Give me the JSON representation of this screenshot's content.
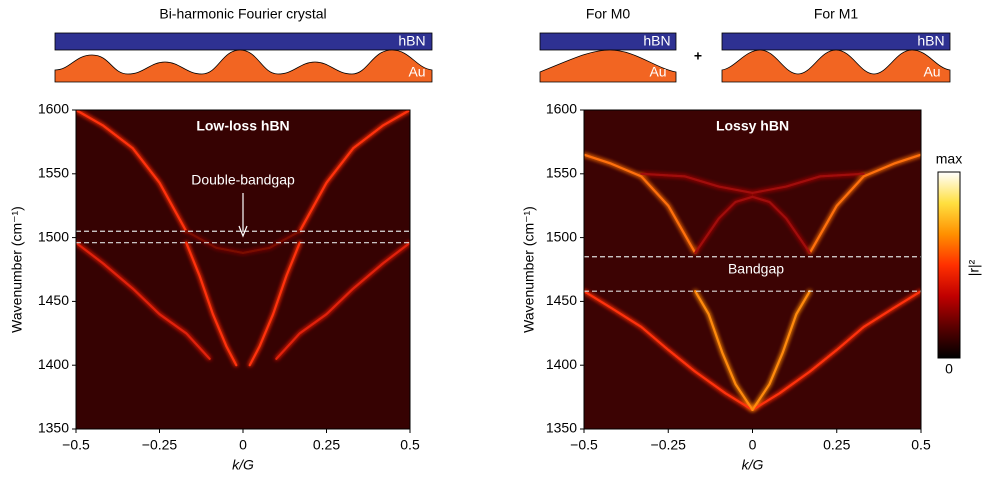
{
  "schematics": {
    "title": "Bi-harmonic Fourier crystal",
    "m0_title": "For M0",
    "plus": "+",
    "m1_title": "For M1",
    "bi_top": "hBN",
    "bi_bottom": "Au",
    "m0_top": "hBN",
    "m0_bottom": "Au",
    "m1_top": "hBN",
    "m1_bottom": "Au"
  },
  "colorbar": {
    "top": "max",
    "bottom": "0",
    "label": "|r|²",
    "colors": [
      "#000000",
      "#5a0000",
      "#c00000",
      "#ff3000",
      "#ff9000",
      "#ffe040",
      "#ffffff"
    ]
  },
  "chart_data": [
    {
      "type": "heatmap",
      "title": "Low-loss hBN",
      "xlabel": "k/G",
      "ylabel": "Wavenumber (cm⁻¹)",
      "background": "#360202",
      "xlim": [
        -0.5,
        0.5
      ],
      "xticks": [
        {
          "value": -0.5,
          "label": "−0.5"
        },
        {
          "value": -0.25,
          "label": "−0.25"
        },
        0,
        0.25,
        0.5
      ],
      "ylim": [
        1350,
        1600
      ],
      "yticks": [
        1350,
        1400,
        1450,
        1500,
        1550,
        1600
      ],
      "hlines": [
        1505,
        1496
      ],
      "annotation": "Double-bandgap",
      "series": [
        {
          "color": "#ff3010",
          "x": [
            -0.5,
            -0.42,
            -0.33,
            -0.25,
            -0.17
          ],
          "y": [
            1600,
            1588,
            1570,
            1543,
            1505
          ]
        },
        {
          "color": "#ff3010",
          "x": [
            0.5,
            0.42,
            0.33,
            0.25,
            0.17
          ],
          "y": [
            1600,
            1588,
            1570,
            1543,
            1505
          ]
        },
        {
          "color": "#7a0a05",
          "x": [
            -0.17,
            -0.08,
            0,
            0.08,
            0.17
          ],
          "y": [
            1505,
            1492,
            1488,
            1492,
            1505
          ]
        },
        {
          "color": "#ff3010",
          "x": [
            -0.17,
            -0.13,
            -0.09,
            -0.05,
            -0.02
          ],
          "y": [
            1496,
            1470,
            1440,
            1415,
            1400
          ]
        },
        {
          "color": "#ff3010",
          "x": [
            0.17,
            0.13,
            0.09,
            0.05,
            0.02
          ],
          "y": [
            1496,
            1470,
            1440,
            1415,
            1400
          ]
        },
        {
          "color": "#e02008",
          "x": [
            -0.5,
            -0.42,
            -0.33,
            -0.25,
            -0.17,
            -0.1
          ],
          "y": [
            1496,
            1480,
            1460,
            1440,
            1425,
            1405
          ]
        },
        {
          "color": "#e02008",
          "x": [
            0.5,
            0.42,
            0.33,
            0.25,
            0.17,
            0.1
          ],
          "y": [
            1496,
            1480,
            1460,
            1440,
            1425,
            1405
          ]
        }
      ]
    },
    {
      "type": "heatmap",
      "title": "Lossy hBN",
      "xlabel": "k/G",
      "ylabel": "Wavenumber (cm⁻¹)",
      "background": "#3c0303",
      "xlim": [
        -0.5,
        0.5
      ],
      "xticks": [
        {
          "value": -0.5,
          "label": "−0.5"
        },
        {
          "value": -0.25,
          "label": "−0.25"
        },
        0,
        0.25,
        0.5
      ],
      "ylim": [
        1350,
        1600
      ],
      "yticks": [
        1350,
        1400,
        1450,
        1500,
        1550,
        1600
      ],
      "hlines": [
        1485,
        1458
      ],
      "annotation": "Bandgap",
      "series": [
        {
          "color": "#ff7010",
          "x": [
            -0.5,
            -0.42,
            -0.33,
            -0.25,
            -0.17
          ],
          "y": [
            1565,
            1558,
            1548,
            1525,
            1488
          ]
        },
        {
          "color": "#ff7010",
          "x": [
            0.5,
            0.42,
            0.33,
            0.25,
            0.17
          ],
          "y": [
            1565,
            1558,
            1548,
            1525,
            1488
          ]
        },
        {
          "color": "#a01008",
          "x": [
            -0.33,
            -0.2,
            -0.1,
            0,
            0.1,
            0.2,
            0.33
          ],
          "y": [
            1550,
            1548,
            1540,
            1535,
            1540,
            1548,
            1550
          ]
        },
        {
          "color": "#a01008",
          "x": [
            -0.17,
            -0.1,
            -0.05,
            0,
            0.05,
            0.1,
            0.17
          ],
          "y": [
            1488,
            1515,
            1528,
            1532,
            1528,
            1515,
            1488
          ]
        },
        {
          "color": "#ff3010",
          "x": [
            -0.5,
            -0.42,
            -0.33,
            -0.25,
            -0.17,
            -0.08,
            0
          ],
          "y": [
            1458,
            1445,
            1430,
            1412,
            1395,
            1378,
            1365
          ]
        },
        {
          "color": "#ff3010",
          "x": [
            0.5,
            0.42,
            0.33,
            0.25,
            0.17,
            0.08,
            0
          ],
          "y": [
            1458,
            1445,
            1430,
            1412,
            1395,
            1378,
            1365
          ]
        },
        {
          "color": "#ff8a10",
          "x": [
            -0.17,
            -0.13,
            -0.09,
            -0.05,
            0
          ],
          "y": [
            1458,
            1440,
            1410,
            1385,
            1365
          ]
        },
        {
          "color": "#ff8a10",
          "x": [
            0.17,
            0.13,
            0.09,
            0.05,
            0
          ],
          "y": [
            1458,
            1440,
            1410,
            1385,
            1365
          ]
        }
      ]
    }
  ]
}
